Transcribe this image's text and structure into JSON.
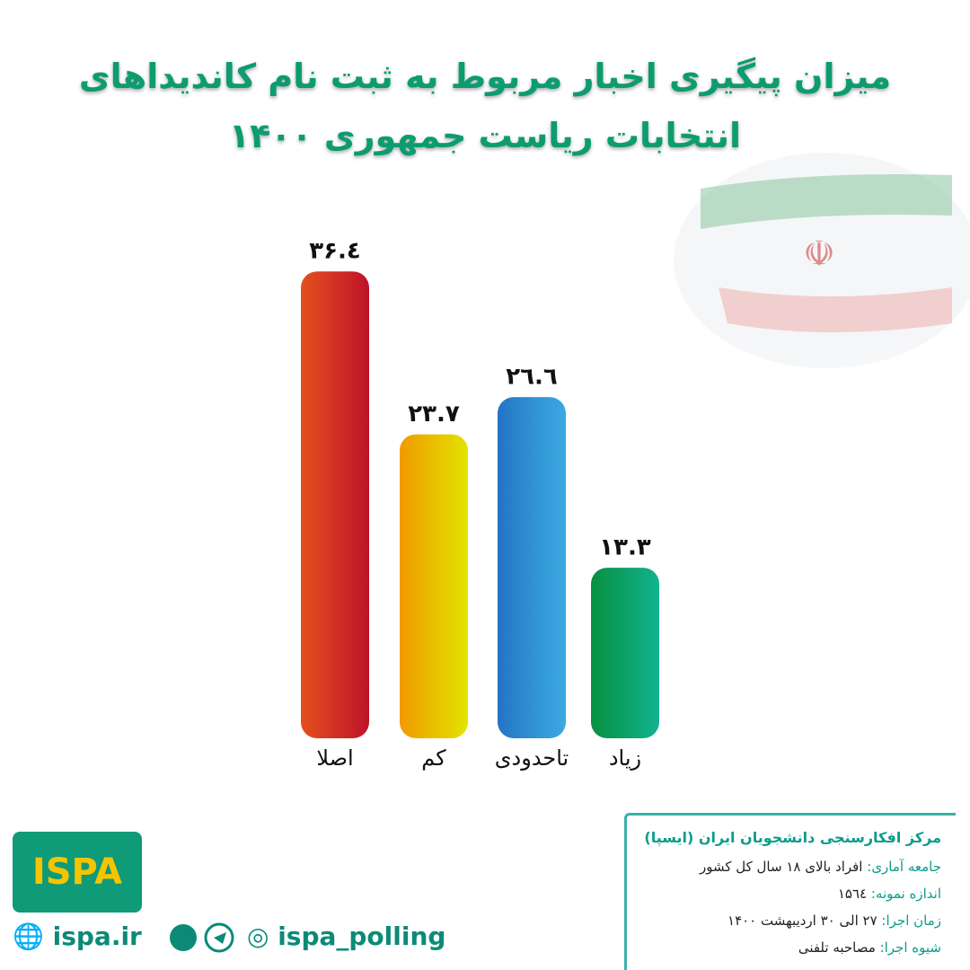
{
  "chart_data": {
    "type": "bar",
    "title": "میزان پیگیری اخبار مربوط به ثبت نام کاندیداهای",
    "subtitle": "انتخابات ریاست جمهوری ۱۴۰۰",
    "categories": [
      "اصلا",
      "کم",
      "تاحدودی",
      "زیاد"
    ],
    "values": [
      36.4,
      23.7,
      26.6,
      13.3
    ],
    "value_labels": [
      "۳۶.٤",
      "۲۳.۷",
      "۲٦.٦",
      "۱۳.۳"
    ],
    "colors": [
      [
        "#e5501f",
        "#bd1328"
      ],
      [
        "#f09a00",
        "#e2e400"
      ],
      [
        "#2474c4",
        "#3caae2"
      ],
      [
        "#079040",
        "#12b290"
      ]
    ]
  },
  "footer": {
    "org": "مرکز افکارسنجی دانشجویان ایران (ایسپا)",
    "items": [
      {
        "label": "جامعه آماری:",
        "value": "افراد بالای ۱۸ سال کل کشور"
      },
      {
        "label": "اندازه نمونه:",
        "value": "۱۵٦٤"
      },
      {
        "label": "زمان اجرا:",
        "value": "۲۷ الی ۳۰ اردیبهشت ۱۴۰۰"
      },
      {
        "label": "شیوه اجرا:",
        "value": "مصاحبه تلفنی"
      }
    ],
    "logo": "ISPA",
    "website": "ispa.ir",
    "handle": "ispa_polling"
  }
}
